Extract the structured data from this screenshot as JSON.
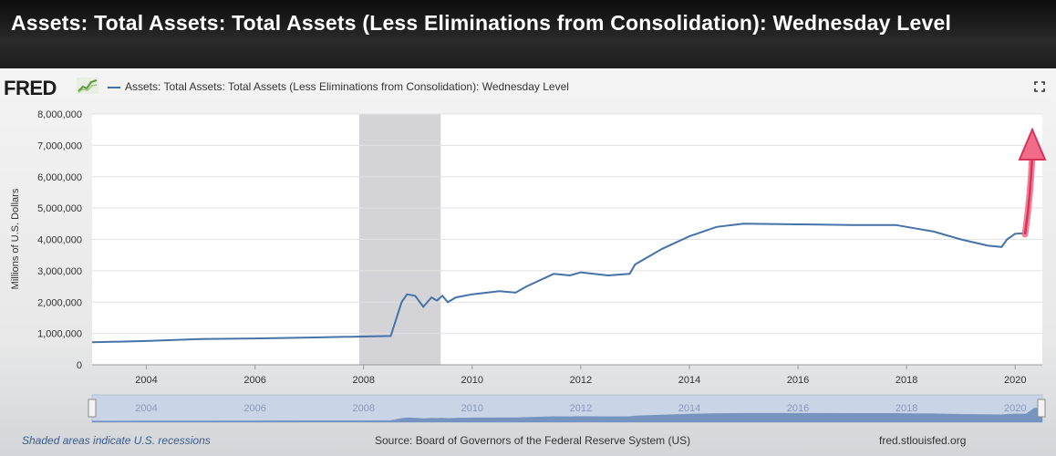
{
  "video_title": "Assets: Total Assets: Total Assets (Less Eliminations from Consolidation): Wednesday Level",
  "logo_text": "FRED",
  "legend_label": "Assets: Total Assets: Total Assets (Less Eliminations from Consolidation): Wednesday Level",
  "footer": {
    "note": "Shaded areas indicate U.S. recessions",
    "source": "Source: Board of Governors of the Federal Reserve System (US)",
    "site": "fred.stlouisfed.org"
  },
  "colors": {
    "line": "#4572a7",
    "recession": "#d4d4d8",
    "arrow": "#e8486a",
    "nav_fill": "#5b7fb3"
  },
  "icons": [
    "fred-sparkline-icon",
    "expand-icon"
  ],
  "chart_data": {
    "type": "line",
    "title": "",
    "ylabel": "Millions of U.S. Dollars",
    "xlabel": "",
    "xlim": [
      2003.0,
      2020.5
    ],
    "ylim": [
      0,
      8000000
    ],
    "y_ticks": [
      0,
      1000000,
      2000000,
      3000000,
      4000000,
      5000000,
      6000000,
      7000000,
      8000000
    ],
    "y_tick_labels": [
      "0",
      "1,000,000",
      "2,000,000",
      "3,000,000",
      "4,000,000",
      "5,000,000",
      "6,000,000",
      "7,000,000",
      "8,000,000"
    ],
    "x_ticks": [
      2004,
      2006,
      2008,
      2010,
      2012,
      2014,
      2016,
      2018,
      2020
    ],
    "x_tick_labels": [
      "2004",
      "2006",
      "2008",
      "2010",
      "2012",
      "2014",
      "2016",
      "2018",
      "2020"
    ],
    "recessions": [
      [
        2007.92,
        2009.42
      ]
    ],
    "grid": "horizontal",
    "legend_position": "top-left",
    "annotation": "upward red arrow near 2020",
    "series": [
      {
        "x": [
          2003.0,
          2004.0,
          2005.0,
          2006.0,
          2007.0,
          2007.9,
          2008.5,
          2008.7,
          2008.8,
          2008.95,
          2009.1,
          2009.25,
          2009.35,
          2009.45,
          2009.55,
          2009.7,
          2010.0,
          2010.5,
          2010.8,
          2011.0,
          2011.5,
          2011.8,
          2012.0,
          2012.5,
          2012.9,
          2013.0,
          2013.5,
          2014.0,
          2014.5,
          2015.0,
          2016.0,
          2017.0,
          2017.8,
          2018.5,
          2019.0,
          2019.5,
          2019.75,
          2019.85,
          2020.0,
          2020.2
        ],
        "y": [
          720000,
          760000,
          820000,
          840000,
          870000,
          900000,
          920000,
          2000000,
          2250000,
          2200000,
          1850000,
          2150000,
          2050000,
          2200000,
          2000000,
          2150000,
          2250000,
          2350000,
          2300000,
          2500000,
          2900000,
          2850000,
          2950000,
          2850000,
          2900000,
          3200000,
          3700000,
          4100000,
          4400000,
          4500000,
          4480000,
          4460000,
          4460000,
          4250000,
          4000000,
          3800000,
          3760000,
          4000000,
          4180000,
          4200000
        ]
      }
    ]
  }
}
